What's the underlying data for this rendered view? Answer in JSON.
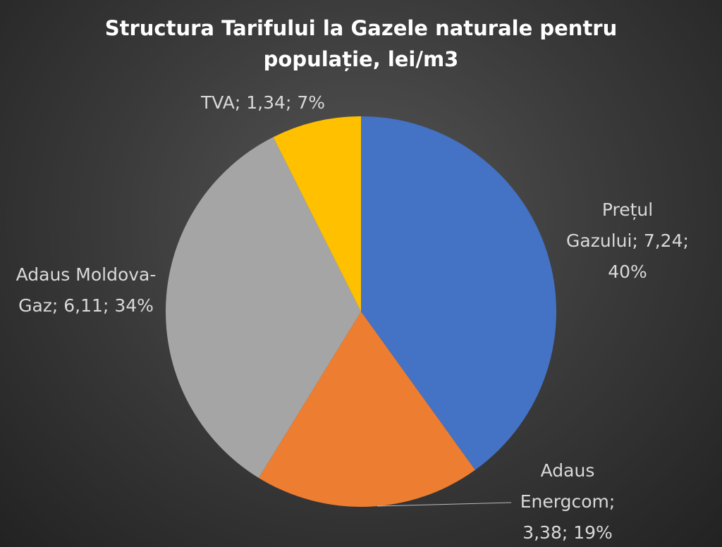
{
  "chart_data": {
    "type": "pie",
    "title": "Structura Tarifului la Gazele naturale pentru populație, lei/m3",
    "categories": [
      "Prețul Gazului",
      "Adaus Energcom",
      "Adaus Moldova-Gaz",
      "TVA"
    ],
    "values": [
      7.24,
      3.38,
      6.11,
      1.34
    ],
    "value_labels": [
      "7,24",
      "3,38",
      "6,11",
      "1,34"
    ],
    "percents": [
      40,
      19,
      34,
      7
    ],
    "percent_labels": [
      "40%",
      "19%",
      "34%",
      "7%"
    ],
    "label_separator": "; ",
    "colors": [
      "#4472c4",
      "#ed7d31",
      "#a5a5a5",
      "#ffc000"
    ]
  }
}
